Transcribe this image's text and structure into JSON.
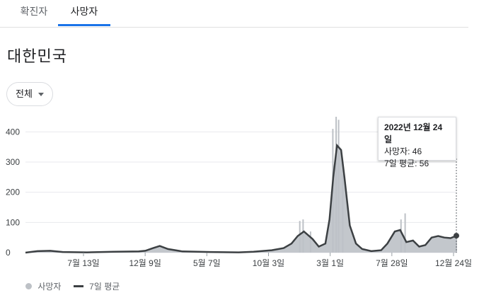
{
  "tabs": [
    {
      "label": "확진자",
      "selected": false
    },
    {
      "label": "사망자",
      "selected": true
    }
  ],
  "region": "대한민국",
  "range_selector": {
    "label": "전체"
  },
  "tooltip": {
    "date": "2022년 12월 24일",
    "deaths": "사망자: 46",
    "avg": "7일 평균: 56"
  },
  "legend": {
    "bars": "사망자",
    "line": "7일 평균"
  },
  "colors": {
    "accent": "#1a73e8",
    "bars": "#bdc1c6",
    "line": "#3c4043"
  },
  "chart_data": {
    "type": "bar",
    "ylim": [
      0,
      450
    ],
    "yticks": [
      0,
      100,
      200,
      300,
      400
    ],
    "xtick_labels": [
      "7월 13일",
      "12월 9일",
      "5월 7일",
      "10월 3일",
      "3월 1일",
      "7월 28일",
      "12월 24일"
    ],
    "x_start": "2020-02-15",
    "x_end": "2022-12-24",
    "series": [
      {
        "name": "7일 평균",
        "style": "line",
        "x": [
          "2020-02-15",
          "2020-03-15",
          "2020-04-15",
          "2020-05-15",
          "2020-07-13",
          "2020-09-15",
          "2020-11-15",
          "2020-12-01",
          "2020-12-20",
          "2021-01-05",
          "2021-01-25",
          "2021-03-01",
          "2021-05-07",
          "2021-07-15",
          "2021-08-20",
          "2021-10-03",
          "2021-11-01",
          "2021-11-20",
          "2021-12-05",
          "2021-12-20",
          "2022-01-10",
          "2022-01-25",
          "2022-02-10",
          "2022-02-20",
          "2022-03-01",
          "2022-03-10",
          "2022-03-20",
          "2022-03-28",
          "2022-04-10",
          "2022-04-25",
          "2022-05-10",
          "2022-06-01",
          "2022-06-25",
          "2022-07-10",
          "2022-07-28",
          "2022-08-10",
          "2022-08-25",
          "2022-09-10",
          "2022-09-25",
          "2022-10-10",
          "2022-10-25",
          "2022-11-10",
          "2022-11-25",
          "2022-12-10",
          "2022-12-24"
        ],
        "values": [
          0,
          5,
          6,
          2,
          1,
          3,
          4,
          6,
          15,
          22,
          12,
          4,
          2,
          1,
          3,
          8,
          15,
          30,
          55,
          70,
          45,
          20,
          30,
          110,
          250,
          355,
          340,
          250,
          90,
          30,
          12,
          5,
          8,
          30,
          70,
          75,
          35,
          40,
          20,
          25,
          50,
          55,
          50,
          48,
          56
        ]
      },
      {
        "name": "사망자",
        "style": "bar",
        "x": [
          "2021-12-10",
          "2021-12-18",
          "2022-01-05",
          "2022-02-28",
          "2022-03-08",
          "2022-03-14",
          "2022-03-24",
          "2022-08-12",
          "2022-08-22",
          "2022-12-24"
        ],
        "values": [
          105,
          110,
          70,
          410,
          450,
          440,
          260,
          110,
          130,
          46
        ]
      }
    ]
  }
}
